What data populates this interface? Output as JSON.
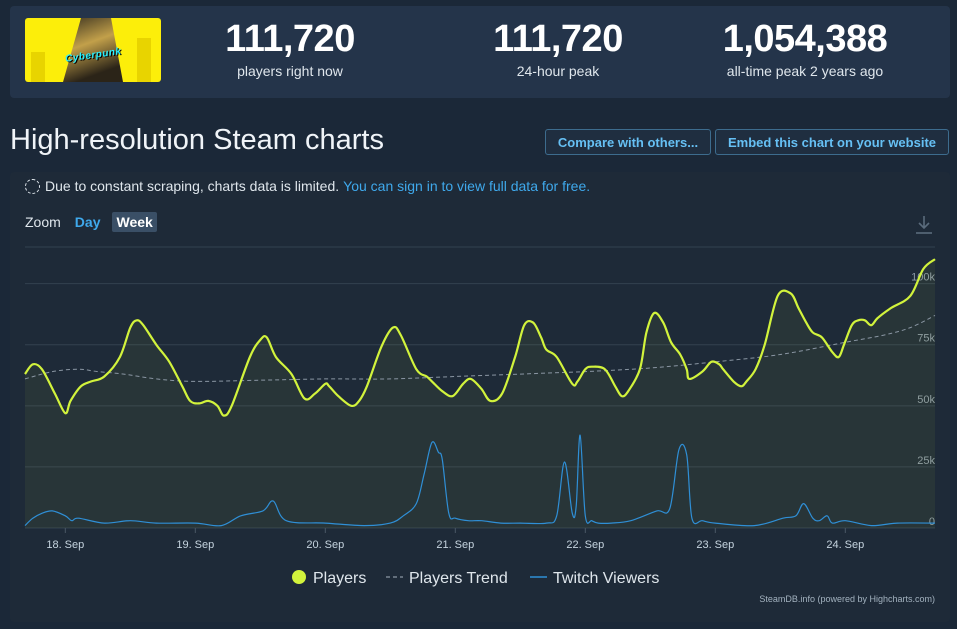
{
  "stats": {
    "players_now": {
      "value": "111,720",
      "label": "players right now"
    },
    "peak_24h": {
      "value": "111,720",
      "label": "24-hour peak"
    },
    "all_time": {
      "value": "1,054,388",
      "label": "all-time peak 2 years ago"
    }
  },
  "game_logo_text": "Cyberpunk",
  "section_title": "High-resolution Steam charts",
  "buttons": {
    "compare": "Compare with others...",
    "embed": "Embed this chart on your website"
  },
  "notice": {
    "text": "Due to constant scraping, charts data is limited.",
    "link": "You can sign in to view full data for free."
  },
  "zoom": {
    "label": "Zoom",
    "options": [
      "Day",
      "Week"
    ],
    "selected": "Week"
  },
  "icons": {
    "download": "download-icon",
    "spinner": "dashed-circle-icon"
  },
  "credit": "SteamDB.info (powered by Highcharts.com)",
  "colors": {
    "players": "#d2f33c",
    "trend": "#8a96a3",
    "twitch": "#2f8fd6",
    "panel": "#1e2a38",
    "link": "#3fa9ec"
  },
  "chart_data": {
    "type": "line",
    "x_unit": "days (0 = 18 Sep 00:00)",
    "xlim": [
      -0.31,
      6.69
    ],
    "ylim": [
      0,
      115000
    ],
    "y_ticks": [
      0,
      25000,
      50000,
      75000,
      100000
    ],
    "y_tick_labels": [
      "0",
      "25k",
      "50k",
      "75k",
      "100k"
    ],
    "x_ticks": [
      0,
      1,
      2,
      3,
      4,
      5,
      6
    ],
    "x_tick_labels": [
      "18. Sep",
      "19. Sep",
      "20. Sep",
      "21. Sep",
      "22. Sep",
      "23. Sep",
      "24. Sep"
    ],
    "legend": [
      "Players",
      "Players Trend",
      "Twitch Viewers"
    ],
    "series": [
      {
        "name": "Players",
        "x": [
          -0.31,
          -0.25,
          -0.18,
          -0.08,
          0.0,
          0.04,
          0.12,
          0.2,
          0.3,
          0.42,
          0.5,
          0.55,
          0.6,
          0.7,
          0.8,
          0.9,
          0.96,
          1.03,
          1.1,
          1.17,
          1.22,
          1.28,
          1.42,
          1.5,
          1.55,
          1.62,
          1.74,
          1.84,
          1.92,
          2.0,
          2.03,
          2.1,
          2.2,
          2.26,
          2.32,
          2.43,
          2.52,
          2.58,
          2.7,
          2.78,
          2.82,
          2.9,
          2.98,
          3.06,
          3.12,
          3.2,
          3.27,
          3.36,
          3.46,
          3.53,
          3.6,
          3.66,
          3.7,
          3.78,
          3.9,
          3.94,
          4.0,
          4.05,
          4.15,
          4.23,
          4.28,
          4.33,
          4.42,
          4.47,
          4.53,
          4.6,
          4.66,
          4.73,
          4.78,
          4.8,
          4.9,
          4.97,
          5.03,
          5.06,
          5.14,
          5.2,
          5.24,
          5.31,
          5.38,
          5.48,
          5.58,
          5.64,
          5.7,
          5.75,
          5.82,
          5.9,
          5.95,
          5.99,
          6.05,
          6.1,
          6.15,
          6.2,
          6.25,
          6.35,
          6.5,
          6.6,
          6.69
        ],
        "y": [
          63000,
          67000,
          65000,
          55000,
          47000,
          52000,
          58000,
          60000,
          62000,
          70000,
          82000,
          85000,
          83000,
          75000,
          68000,
          58000,
          52000,
          51000,
          52000,
          50000,
          46000,
          50000,
          70000,
          77000,
          78000,
          70000,
          63000,
          53000,
          55000,
          59000,
          58000,
          54000,
          50000,
          52000,
          58000,
          74000,
          82000,
          79000,
          65000,
          62000,
          60000,
          56000,
          54000,
          59000,
          61000,
          57000,
          52000,
          55000,
          70000,
          83000,
          84000,
          78000,
          73000,
          70000,
          59000,
          60000,
          65000,
          66000,
          65000,
          58000,
          54000,
          56000,
          65000,
          80000,
          88000,
          84000,
          76000,
          71000,
          65000,
          61000,
          64000,
          68000,
          67000,
          65000,
          60000,
          58000,
          60000,
          65000,
          75000,
          95000,
          96000,
          90000,
          84000,
          80000,
          78000,
          72000,
          70000,
          75000,
          83000,
          85000,
          85000,
          83000,
          86000,
          90000,
          95000,
          106000,
          110000
        ]
      },
      {
        "name": "Players Trend",
        "x": [
          -0.31,
          -0.1,
          0.1,
          0.25,
          0.45,
          0.7,
          1.0,
          1.5,
          2.0,
          2.5,
          3.0,
          3.5,
          4.0,
          4.5,
          5.0,
          5.5,
          6.0,
          6.3,
          6.5,
          6.69
        ],
        "y": [
          61000,
          64000,
          65000,
          64000,
          63000,
          61000,
          60000,
          60500,
          61000,
          61000,
          62000,
          63000,
          64000,
          65500,
          68000,
          71000,
          76000,
          79000,
          82000,
          87000
        ]
      },
      {
        "name": "Twitch Viewers",
        "x": [
          -0.31,
          -0.25,
          -0.18,
          -0.1,
          0.0,
          0.05,
          0.1,
          0.3,
          0.5,
          0.7,
          1.0,
          1.2,
          1.35,
          1.52,
          1.6,
          1.7,
          2.0,
          2.3,
          2.5,
          2.6,
          2.7,
          2.76,
          2.82,
          2.87,
          2.9,
          2.95,
          3.0,
          3.1,
          3.2,
          3.35,
          3.5,
          3.7,
          3.78,
          3.84,
          3.9,
          3.93,
          3.96,
          4.0,
          4.05,
          4.1,
          4.2,
          4.35,
          4.55,
          4.65,
          4.72,
          4.78,
          4.82,
          4.9,
          5.0,
          5.3,
          5.52,
          5.62,
          5.68,
          5.75,
          5.8,
          5.86,
          5.9,
          6.0,
          6.2,
          6.4,
          6.69
        ],
        "y": [
          1000,
          4000,
          6000,
          7000,
          5000,
          3000,
          4000,
          2000,
          3000,
          2000,
          2000,
          1000,
          5000,
          7000,
          11000,
          3000,
          2000,
          1000,
          2000,
          5000,
          10000,
          22000,
          35000,
          31000,
          28000,
          6000,
          4000,
          3000,
          3000,
          2000,
          2000,
          2000,
          5000,
          27000,
          6000,
          9000,
          38000,
          5000,
          3000,
          2000,
          2000,
          3000,
          7000,
          8000,
          32000,
          30000,
          4000,
          3000,
          2000,
          1000,
          4000,
          5000,
          10000,
          4000,
          3000,
          5000,
          2000,
          3000,
          1000,
          2000,
          2000
        ]
      }
    ]
  }
}
